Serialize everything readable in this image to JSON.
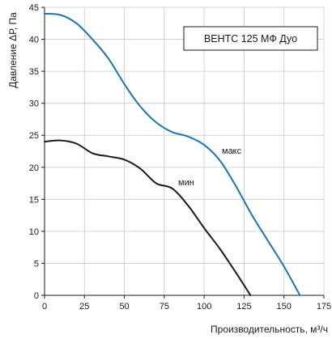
{
  "chart_data": {
    "type": "line",
    "title": "ВЕНТС 125 МФ Дуо",
    "xlabel": "Производительность, м³/ч",
    "ylabel": "Давление ΔР, Па",
    "xlim": [
      0,
      175
    ],
    "ylim": [
      0,
      45
    ],
    "x_ticks": [
      0,
      25,
      50,
      75,
      100,
      125,
      150,
      175
    ],
    "y_ticks": [
      0,
      5,
      10,
      15,
      20,
      25,
      30,
      35,
      40,
      45
    ],
    "x_tick_labels": [
      "0",
      "25",
      "50",
      "75",
      "100",
      "125",
      "150",
      "175"
    ],
    "y_tick_labels": [
      "0",
      "5",
      "10",
      "15",
      "20",
      "25",
      "30",
      "35",
      "40",
      "45"
    ],
    "grid": true,
    "legend_position": "top-right",
    "series": [
      {
        "name": "макс",
        "color": "#1a75b8",
        "points": [
          [
            0,
            44
          ],
          [
            10,
            43.8
          ],
          [
            20,
            42.5
          ],
          [
            30,
            40
          ],
          [
            40,
            37
          ],
          [
            50,
            33
          ],
          [
            60,
            29.5
          ],
          [
            70,
            27
          ],
          [
            80,
            25.5
          ],
          [
            90,
            24.8
          ],
          [
            100,
            23.5
          ],
          [
            110,
            21
          ],
          [
            120,
            17
          ],
          [
            130,
            12.5
          ],
          [
            140,
            8.5
          ],
          [
            150,
            4.5
          ],
          [
            160,
            0
          ]
        ]
      },
      {
        "name": "мин",
        "color": "#1a1a1a",
        "points": [
          [
            0,
            24
          ],
          [
            10,
            24.2
          ],
          [
            20,
            23.7
          ],
          [
            30,
            22.2
          ],
          [
            40,
            21.7
          ],
          [
            50,
            21.2
          ],
          [
            60,
            19.8
          ],
          [
            70,
            17.5
          ],
          [
            80,
            16.7
          ],
          [
            90,
            14
          ],
          [
            100,
            10.5
          ],
          [
            110,
            7.2
          ],
          [
            120,
            3.5
          ],
          [
            129,
            0
          ]
        ]
      }
    ]
  }
}
